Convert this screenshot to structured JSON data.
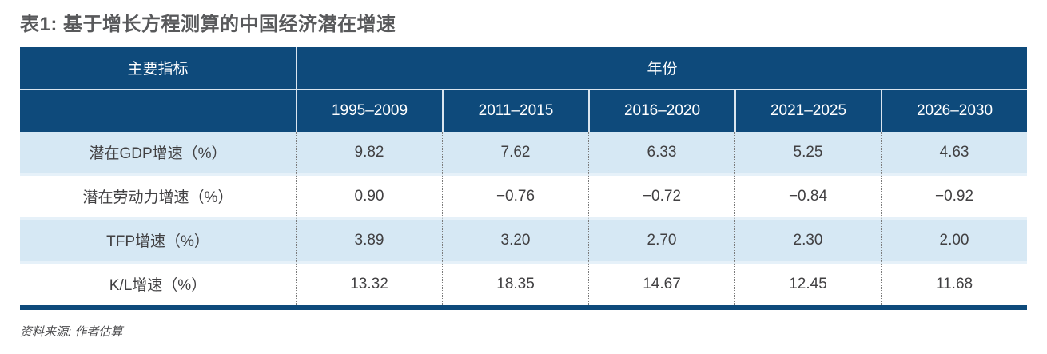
{
  "title": "表1: 基于增长方程测算的中国经济潜在增速",
  "source_note": "资料来源: 作者估算",
  "colors": {
    "header_bg": "#0E4A7B",
    "row_alt_bg": "#D6E8F4",
    "title_color": "#58595B"
  },
  "table": {
    "corner_header": "主要指标",
    "group_header": "年份",
    "columns": [
      "1995–2009",
      "2011–2015",
      "2016–2020",
      "2021–2025",
      "2026–2030"
    ],
    "rows": [
      {
        "label": "潜在GDP增速（%）",
        "values": [
          "9.82",
          "7.62",
          "6.33",
          "5.25",
          "4.63"
        ]
      },
      {
        "label": "潜在劳动力增速（%）",
        "values": [
          "0.90",
          "−0.76",
          "−0.72",
          "−0.84",
          "−0.92"
        ]
      },
      {
        "label": "TFP增速（%）",
        "values": [
          "3.89",
          "3.20",
          "2.70",
          "2.30",
          "2.00"
        ]
      },
      {
        "label": "K/L增速（%）",
        "values": [
          "13.32",
          "18.35",
          "14.67",
          "12.45",
          "11.68"
        ]
      }
    ]
  },
  "chart_data": {
    "type": "table",
    "title": "表1: 基于增长方程测算的中国经济潜在增速",
    "row_header": "主要指标",
    "column_group": "年份",
    "columns": [
      "1995–2009",
      "2011–2015",
      "2016–2020",
      "2021–2025",
      "2026–2030"
    ],
    "series": [
      {
        "name": "潜在GDP增速（%）",
        "values": [
          9.82,
          7.62,
          6.33,
          5.25,
          4.63
        ]
      },
      {
        "name": "潜在劳动力增速（%）",
        "values": [
          0.9,
          -0.76,
          -0.72,
          -0.84,
          -0.92
        ]
      },
      {
        "name": "TFP增速（%）",
        "values": [
          3.89,
          3.2,
          2.7,
          2.3,
          2.0
        ]
      },
      {
        "name": "K/L增速（%）",
        "values": [
          13.32,
          18.35,
          14.67,
          12.45,
          11.68
        ]
      }
    ],
    "source": "资料来源: 作者估算"
  }
}
